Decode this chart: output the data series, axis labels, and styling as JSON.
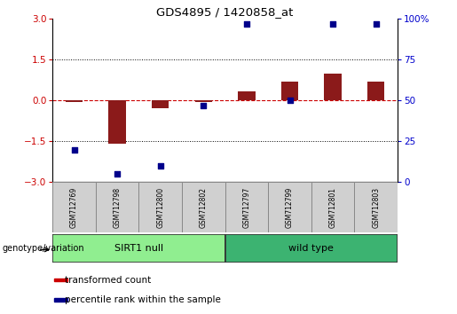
{
  "title": "GDS4895 / 1420858_at",
  "samples": [
    "GSM712769",
    "GSM712798",
    "GSM712800",
    "GSM712802",
    "GSM712797",
    "GSM712799",
    "GSM712801",
    "GSM712803"
  ],
  "transformed_count": [
    -0.05,
    -1.6,
    -0.3,
    -0.07,
    0.35,
    0.7,
    1.0,
    0.7
  ],
  "percentile_rank": [
    20,
    5,
    10,
    47,
    97,
    50,
    97,
    97
  ],
  "ylim_left": [
    -3,
    3
  ],
  "ylim_right": [
    0,
    100
  ],
  "yticks_left": [
    -3,
    -1.5,
    0,
    1.5,
    3
  ],
  "yticks_right": [
    0,
    25,
    50,
    75,
    100
  ],
  "dotted_lines": [
    -1.5,
    1.5
  ],
  "groups": [
    {
      "label": "SIRT1 null",
      "start": 0,
      "end": 3,
      "color": "#90EE90"
    },
    {
      "label": "wild type",
      "start": 4,
      "end": 7,
      "color": "#3CB371"
    }
  ],
  "group_header": "genotype/variation",
  "bar_color": "#8B1A1A",
  "dot_color": "#00008B",
  "zero_line_color": "#CC0000",
  "tick_label_color_left": "#CC0000",
  "tick_label_color_right": "#0000CC",
  "legend_items": [
    {
      "label": "transformed count",
      "color": "#CC0000"
    },
    {
      "label": "percentile rank within the sample",
      "color": "#00008B"
    }
  ],
  "bar_width": 0.4,
  "dot_size": 18
}
